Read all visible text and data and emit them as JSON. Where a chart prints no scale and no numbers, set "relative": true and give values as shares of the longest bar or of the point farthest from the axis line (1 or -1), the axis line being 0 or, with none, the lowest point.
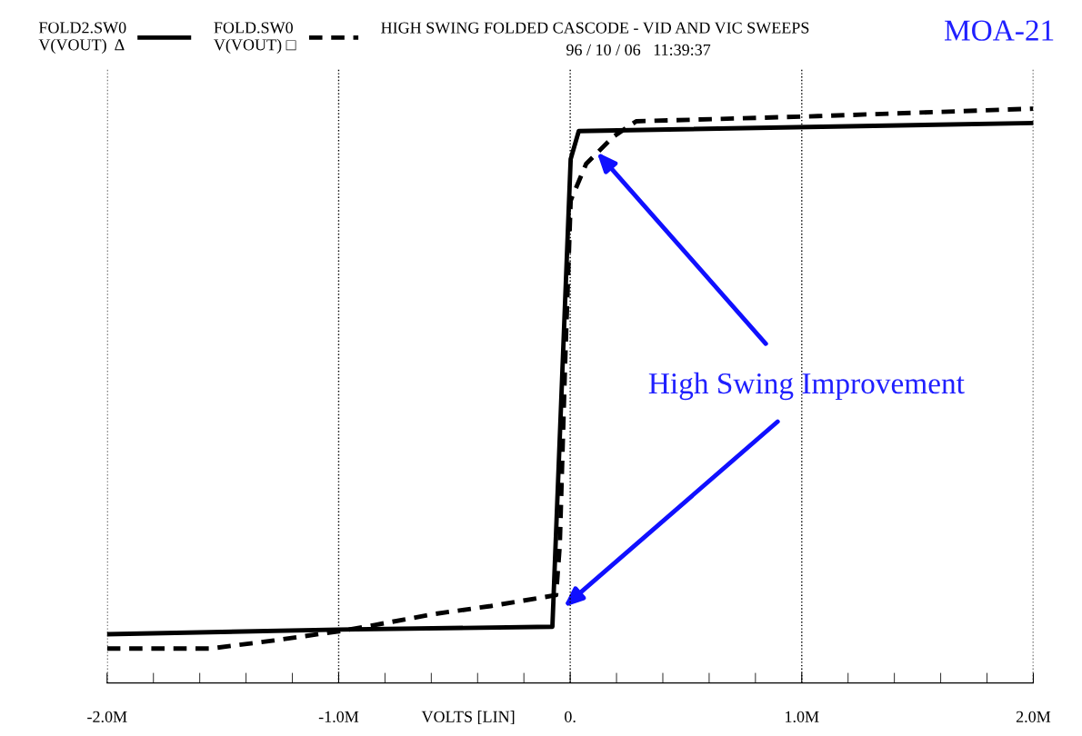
{
  "chart_data": {
    "type": "line",
    "title": "HIGH SWING FOLDED CASCODE - VID AND VIC SWEEPS",
    "subtitle": "96 / 10 / 06   11:39:37",
    "xlabel": "VOLTS [LIN]",
    "relative": true,
    "xlim": [
      -2,
      2
    ],
    "xticks": [
      {
        "value": -2,
        "label": "-2.0M"
      },
      {
        "value": -1,
        "label": "-1.0M"
      },
      {
        "value": 0,
        "label": "0."
      },
      {
        "value": 1,
        "label": "1.0M"
      },
      {
        "value": 2,
        "label": "2.0M"
      }
    ],
    "grid": "x",
    "legend": "top left",
    "marker": "none",
    "annotations": [
      "MOA-21",
      "High Swing Improvement"
    ],
    "series": [
      {
        "name": "FOLD2.SW0\nV(VOUT)  Δ",
        "color": "#000000",
        "line_style": "solid",
        "x": [
          -2.0,
          -1.0,
          -0.077,
          0.002,
          0.037,
          2.0
        ],
        "values": [
          0.085,
          0.093,
          0.098,
          0.912,
          0.961,
          0.975
        ]
      },
      {
        "name": "FOLD.SW0\nV(VOUT) □",
        "color": "#000000",
        "line_style": "dashed",
        "x": [
          -2.0,
          -1.555,
          -1.28,
          -1.0,
          -0.844,
          -0.59,
          -0.343,
          -0.061,
          -0.045,
          -0.022,
          0.002,
          0.069,
          0.186,
          0.285,
          1.07,
          2.0
        ],
        "values": [
          0.06,
          0.06,
          0.074,
          0.09,
          0.101,
          0.12,
          0.134,
          0.153,
          0.24,
          0.556,
          0.84,
          0.904,
          0.951,
          0.978,
          0.987,
          1.0
        ]
      }
    ]
  }
}
